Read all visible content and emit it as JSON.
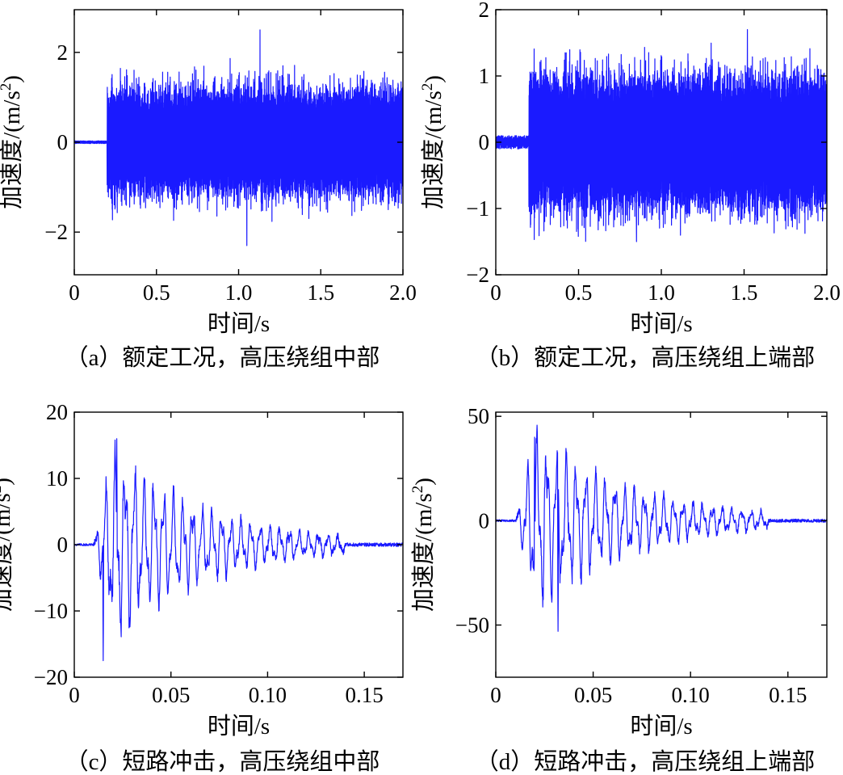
{
  "figure_title": "",
  "colors": {
    "trace": "#1a1aff",
    "axis": "#000000"
  },
  "chart_data": [
    {
      "id": "a",
      "type": "line",
      "caption": "（a）额定工况，高压绕组中部",
      "xlabel": "时间/s",
      "ylabel_text": "加速度/(m/s",
      "ylabel_sup": "2",
      "ylabel_close": ")",
      "xlim": [
        0,
        2.0
      ],
      "ylim": [
        -2.95,
        2.95
      ],
      "xticks": [
        0,
        0.5,
        1.0,
        1.5,
        2.0
      ],
      "xtick_labels": [
        "0",
        "0.5",
        "1.0",
        "1.5",
        "2.0"
      ],
      "yticks": [
        -2,
        0,
        2
      ],
      "ytick_labels": [
        "−2",
        "0",
        "2"
      ],
      "series": [
        {
          "name": "acceleration",
          "kind": "stationary-vibration",
          "onset_s": 0.2,
          "pre_onset_amplitude": 0.03,
          "typical_amplitude": 1.0,
          "peak_max": 2.5,
          "peak_max_at_s": 1.13,
          "peak_min": -2.3,
          "peak_min_at_s": 1.05
        }
      ]
    },
    {
      "id": "b",
      "type": "line",
      "caption": "（b）额定工况，高压绕组上端部",
      "xlabel": "时间/s",
      "ylabel_text": "加速度/(m/s",
      "ylabel_sup": "2",
      "ylabel_close": ")",
      "xlim": [
        0,
        2.0
      ],
      "ylim": [
        -2.0,
        2.0
      ],
      "xticks": [
        0,
        0.5,
        1.0,
        1.5,
        2.0
      ],
      "xtick_labels": [
        "0",
        "0.5",
        "1.0",
        "1.5",
        "2.0"
      ],
      "yticks": [
        -2,
        -1,
        0,
        1,
        2
      ],
      "ytick_labels": [
        "−2",
        "−1",
        "0",
        "1",
        "2"
      ],
      "series": [
        {
          "name": "acceleration",
          "kind": "stationary-vibration",
          "onset_s": 0.2,
          "pre_onset_amplitude": 0.1,
          "typical_amplitude": 0.85,
          "peak_max": 1.7,
          "peak_max_at_s": 1.52,
          "peak_min": -1.5,
          "peak_min_at_s": 0.85
        }
      ]
    },
    {
      "id": "c",
      "type": "line",
      "caption": "（c）短路冲击，高压绕组中部",
      "xlabel": "时间/s",
      "ylabel_text": "加速度/(m/s",
      "ylabel_sup": "2",
      "ylabel_close": ")",
      "xlim": [
        0,
        0.17
      ],
      "ylim": [
        -20,
        20
      ],
      "xticks": [
        0,
        0.05,
        0.1,
        0.15
      ],
      "xtick_labels": [
        "0",
        "0.05",
        "0.10",
        "0.15"
      ],
      "yticks": [
        -20,
        -10,
        0,
        10,
        20
      ],
      "ytick_labels": [
        "−20",
        "−10",
        "0",
        "10",
        "20"
      ],
      "series": [
        {
          "name": "acceleration",
          "kind": "decaying-oscillation",
          "onset_s": 0.01,
          "end_s": 0.14,
          "cycle_s": 0.005,
          "peak_max": 16,
          "peak_max_at_s": 0.022,
          "peak_min": -17.5,
          "peak_min_at_s": 0.015
        }
      ]
    },
    {
      "id": "d",
      "type": "line",
      "caption": "（d）短路冲击，高压绕组上端部",
      "xlabel": "时间/s",
      "ylabel_text": "加速度/(m/s",
      "ylabel_sup": "2",
      "ylabel_close": ")",
      "xlim": [
        0,
        0.17
      ],
      "ylim": [
        -75,
        52
      ],
      "xticks": [
        0,
        0.05,
        0.1,
        0.15
      ],
      "xtick_labels": [
        "0",
        "0.05",
        "0.10",
        "0.15"
      ],
      "yticks": [
        -50,
        0,
        50
      ],
      "ytick_labels": [
        "−50",
        "0",
        "50"
      ],
      "series": [
        {
          "name": "acceleration",
          "kind": "decaying-oscillation",
          "onset_s": 0.01,
          "end_s": 0.14,
          "cycle_s": 0.005,
          "peak_max": 40,
          "peak_max_at_s": 0.02,
          "peak_min": -53,
          "peak_min_at_s": 0.032
        }
      ]
    }
  ]
}
